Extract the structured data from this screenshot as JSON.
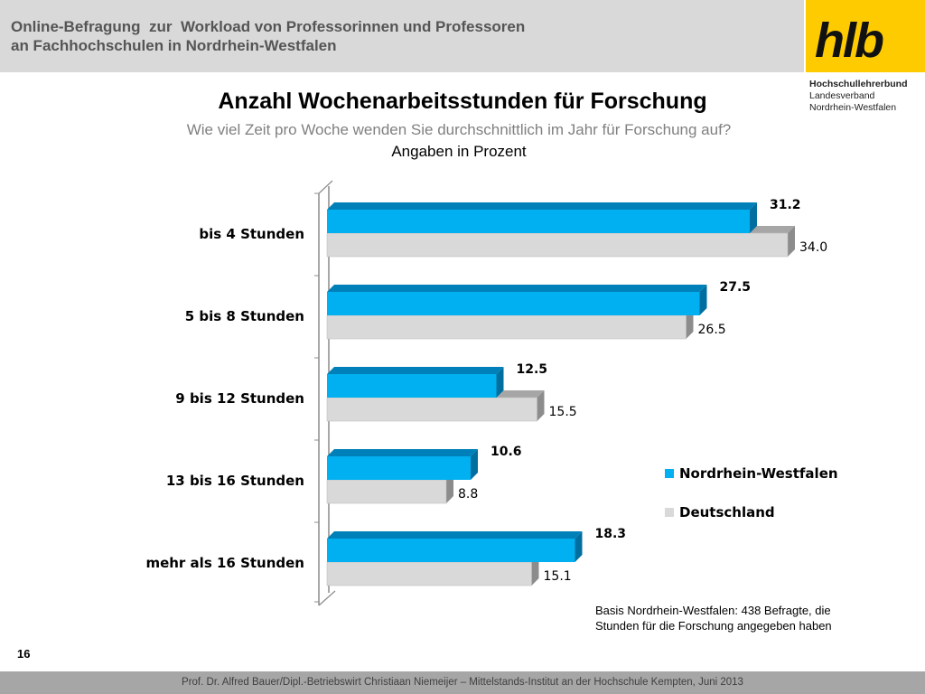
{
  "header": {
    "title_line1": "Online-Befragung  zur  Workload von Professorinnen und Professoren",
    "title_line2": "an Fachhochschulen in Nordrhein-Westfalen"
  },
  "logo": {
    "mark": "hlb",
    "line1": "Hochschullehrerbund",
    "line2": "Landesverband",
    "line3": "Nordrhein-Westfalen",
    "color": "#fecb00"
  },
  "chart_data": {
    "type": "bar",
    "orientation": "horizontal",
    "title": "Anzahl Wochenarbeitsstunden für Forschung",
    "subtitle": "Wie viel Zeit pro Woche wenden Sie durchschnittlich im Jahr für Forschung auf?",
    "unit_label": "Angaben in Prozent",
    "categories": [
      "bis 4 Stunden",
      "5 bis 8 Stunden",
      "9 bis 12 Stunden",
      "13 bis 16 Stunden",
      "mehr als 16 Stunden"
    ],
    "series": [
      {
        "name": "Nordrhein-Westfalen",
        "values": [
          31.2,
          27.5,
          12.5,
          10.6,
          18.3
        ],
        "labels": [
          "31.2",
          "27.5",
          "12.5",
          "10.6",
          "18.3"
        ],
        "color": "#00b0f0",
        "top_color": "#0080b8",
        "side_color": "#006fa0"
      },
      {
        "name": "Deutschland",
        "values": [
          34.0,
          26.5,
          15.5,
          8.8,
          15.1
        ],
        "labels": [
          "34.0",
          "26.5",
          "15.5",
          "8.8",
          "15.1"
        ],
        "color": "#d9d9d9",
        "top_color": "#a6a6a6",
        "side_color": "#8c8c8c"
      }
    ],
    "xlim": [
      0,
      36
    ],
    "grid": false,
    "legend_position": "bottom-right",
    "style": "3d"
  },
  "note": {
    "line1": "Basis Nordrhein-Westfalen: 438 Befragte, die",
    "line2": "Stunden für die Forschung angegeben haben"
  },
  "page_number": "16",
  "footer": {
    "text": "Prof. Dr. Alfred Bauer/Dipl.-Betriebswirt Christiaan Niemeijer – Mittelstands-Institut an der Hochschule Kempten, Juni 2013"
  }
}
